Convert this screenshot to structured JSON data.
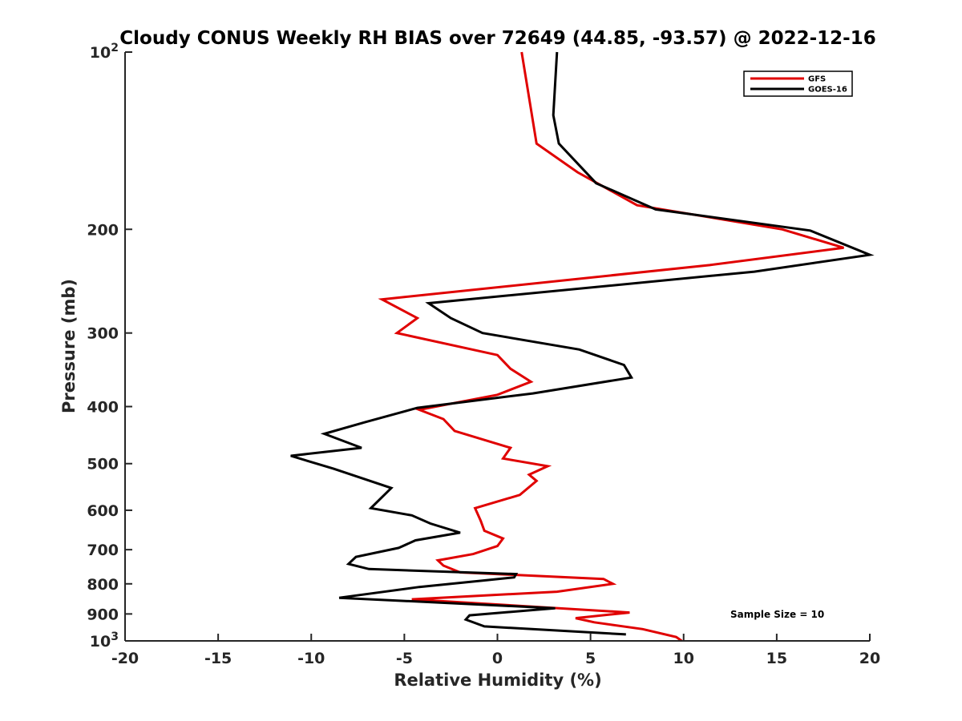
{
  "chart_data": {
    "type": "line",
    "title": "Cloudy CONUS Weekly RH BIAS over 72649 (44.85, -93.57) @ 2022-12-16",
    "xlabel": "Relative Humidity (%)",
    "ylabel": "Pressure (mb)",
    "xlim": [
      -20,
      20
    ],
    "ylim": [
      100,
      1000
    ],
    "y_scale": "log",
    "y_reversed": true,
    "grid": false,
    "legend_position": "top-right",
    "annotation": "Sample Size = 10",
    "x_ticks": [
      "-20",
      "-15",
      "-10",
      "-5",
      "0",
      "5",
      "10",
      "15",
      "20"
    ],
    "y_ticks": [
      {
        "value": 100,
        "label": "10",
        "sup": "2"
      },
      {
        "value": 200,
        "label": "200"
      },
      {
        "value": 300,
        "label": "300"
      },
      {
        "value": 400,
        "label": "400"
      },
      {
        "value": 500,
        "label": "500"
      },
      {
        "value": 600,
        "label": "600"
      },
      {
        "value": 700,
        "label": "700"
      },
      {
        "value": 800,
        "label": "800"
      },
      {
        "value": 900,
        "label": "900"
      },
      {
        "value": 1000,
        "label": "10",
        "sup": "3"
      }
    ],
    "series": [
      {
        "name": "GFS",
        "color": "#e00000",
        "x": [
          1.3,
          2.1,
          4.3,
          7.5,
          15.3,
          18.6,
          11.4,
          -6.2,
          -4.3,
          -5.4,
          0,
          0.7,
          1.8,
          0,
          -4.2,
          -2.9,
          -2.3,
          0.7,
          0.3,
          2.7,
          1.7,
          2.1,
          1.2,
          -1.2,
          -0.9,
          -0.7,
          0.3,
          0,
          -1.3,
          -3.2,
          -2.9,
          -2,
          5.7,
          6.2,
          3.2,
          -4.6,
          7.1,
          4.2,
          5.2,
          7.8,
          9.6,
          9.9
        ],
        "y": [
          100,
          143,
          160,
          182,
          200,
          215,
          230,
          263,
          283,
          300,
          327,
          345,
          363,
          382,
          405,
          420,
          440,
          470,
          490,
          505,
          522,
          535,
          565,
          595,
          625,
          650,
          670,
          690,
          712,
          730,
          745,
          765,
          785,
          800,
          825,
          850,
          895,
          915,
          930,
          955,
          985,
          1000
        ]
      },
      {
        "name": "GOES-16",
        "color": "#000000",
        "x": [
          3.2,
          3,
          3.3,
          5.3,
          8.5,
          16.8,
          20,
          13.8,
          -3.7,
          -2.5,
          -0.8,
          4.4,
          6.8,
          7.2,
          1.9,
          -4.3,
          -7.1,
          -9.3,
          -7.3,
          -11.1,
          -8.8,
          -5.7,
          -6.8,
          -4.6,
          -3.6,
          -2,
          -4.4,
          -5.3,
          -7.6,
          -8,
          -6.9,
          1,
          0.9,
          -0.8,
          -4.2,
          -8.5,
          3.1,
          -1.5,
          -1.7,
          -0.7,
          6.9
        ],
        "y": [
          100,
          128,
          143,
          167,
          185,
          201,
          221,
          236,
          267,
          283,
          300,
          320,
          340,
          357,
          380,
          402,
          425,
          445,
          470,
          485,
          510,
          550,
          595,
          612,
          632,
          655,
          675,
          695,
          720,
          740,
          755,
          770,
          780,
          790,
          810,
          845,
          880,
          905,
          920,
          945,
          975
        ]
      }
    ]
  }
}
